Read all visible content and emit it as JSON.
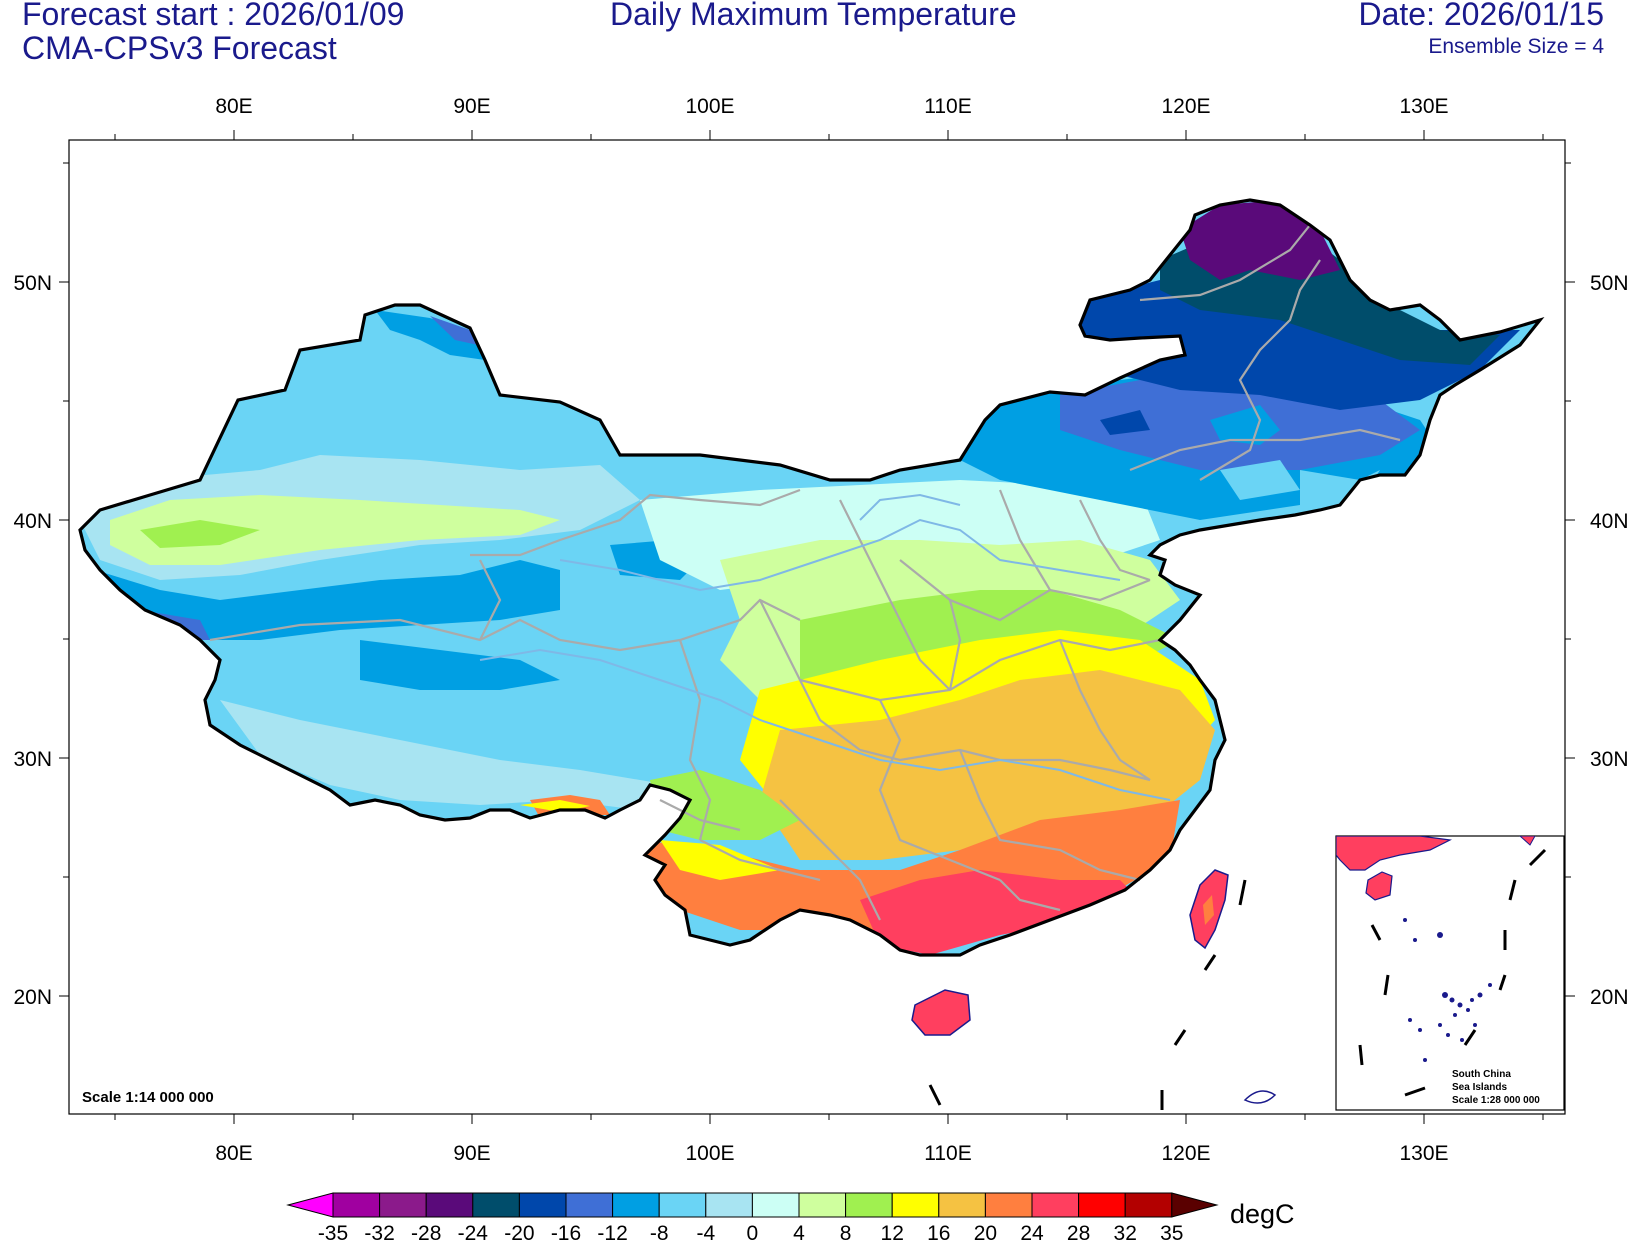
{
  "header": {
    "forecast_start": "Forecast start : 2026/01/09",
    "model": "CMA-CPSv3 Forecast",
    "title": "Daily Maximum Temperature",
    "date": "Date: 2026/01/15",
    "ensemble": "Ensemble Size = 4"
  },
  "map": {
    "lon_labels": [
      "80E",
      "90E",
      "100E",
      "110E",
      "120E",
      "130E"
    ],
    "lat_labels": [
      "50N",
      "40N",
      "30N",
      "20N"
    ],
    "scale_text": "Scale 1:14 000 000",
    "inset": {
      "line1": "South China",
      "line2": "Sea Islands",
      "line3": "Scale 1:28 000 000"
    }
  },
  "colorbar": {
    "unit": "degC",
    "labels": [
      "-35",
      "-32",
      "-28",
      "-24",
      "-20",
      "-16",
      "-12",
      "-8",
      "-4",
      "0",
      "4",
      "8",
      "12",
      "16",
      "20",
      "24",
      "28",
      "32",
      "35"
    ],
    "colors": [
      "#ff00ff",
      "#a000a0",
      "#8b1a8b",
      "#5a0a7a",
      "#004d6b",
      "#0047ab",
      "#3f6fd6",
      "#009fe3",
      "#6ad4f5",
      "#a8e4f2",
      "#ccfff5",
      "#cfff9e",
      "#a0f050",
      "#ffff00",
      "#f5c242",
      "#ff7f3f",
      "#ff3f5f",
      "#ff0000",
      "#b30000",
      "#5a0000"
    ]
  }
}
